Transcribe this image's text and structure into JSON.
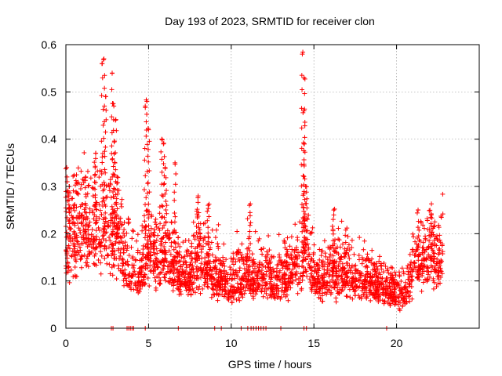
{
  "chart_data": {
    "type": "scatter",
    "title": "Day 193 of 2023, SRMTID for receiver clon",
    "xlabel": "GPS time / hours",
    "ylabel": "SRMTID / TECUs",
    "xlim": [
      0,
      25
    ],
    "ylim": [
      0,
      0.6
    ],
    "xticks": [
      0,
      5,
      10,
      15,
      20
    ],
    "xtick_labels": [
      "0",
      "5",
      "10",
      "15",
      "20"
    ],
    "yticks": [
      0,
      0.1,
      0.2,
      0.3,
      0.4,
      0.5,
      0.6
    ],
    "ytick_labels": [
      "0",
      "0.1",
      "0.2",
      "0.3",
      "0.4",
      "0.5",
      "0.6"
    ],
    "grid": true,
    "marker": "+",
    "color": "#ff0000",
    "series": [
      {
        "name": "SRMTID",
        "envelope": [
          {
            "x": 0.0,
            "y": 0.17
          },
          {
            "x": 0.3,
            "y": 0.2
          },
          {
            "x": 0.6,
            "y": 0.18
          },
          {
            "x": 1.0,
            "y": 0.2
          },
          {
            "x": 1.5,
            "y": 0.19
          },
          {
            "x": 2.0,
            "y": 0.21
          },
          {
            "x": 2.5,
            "y": 0.2
          },
          {
            "x": 3.0,
            "y": 0.2
          },
          {
            "x": 3.5,
            "y": 0.15
          },
          {
            "x": 4.0,
            "y": 0.12
          },
          {
            "x": 4.5,
            "y": 0.11
          },
          {
            "x": 5.0,
            "y": 0.17
          },
          {
            "x": 5.5,
            "y": 0.13
          },
          {
            "x": 6.0,
            "y": 0.15
          },
          {
            "x": 6.5,
            "y": 0.13
          },
          {
            "x": 7.0,
            "y": 0.11
          },
          {
            "x": 7.5,
            "y": 0.11
          },
          {
            "x": 8.0,
            "y": 0.15
          },
          {
            "x": 8.5,
            "y": 0.13
          },
          {
            "x": 9.0,
            "y": 0.11
          },
          {
            "x": 9.5,
            "y": 0.1
          },
          {
            "x": 10.0,
            "y": 0.09
          },
          {
            "x": 10.5,
            "y": 0.11
          },
          {
            "x": 11.0,
            "y": 0.12
          },
          {
            "x": 11.5,
            "y": 0.1
          },
          {
            "x": 12.0,
            "y": 0.11
          },
          {
            "x": 12.5,
            "y": 0.1
          },
          {
            "x": 13.0,
            "y": 0.1
          },
          {
            "x": 13.5,
            "y": 0.11
          },
          {
            "x": 14.0,
            "y": 0.13
          },
          {
            "x": 14.5,
            "y": 0.15
          },
          {
            "x": 15.0,
            "y": 0.11
          },
          {
            "x": 15.5,
            "y": 0.1
          },
          {
            "x": 16.0,
            "y": 0.12
          },
          {
            "x": 16.5,
            "y": 0.11
          },
          {
            "x": 17.0,
            "y": 0.12
          },
          {
            "x": 17.5,
            "y": 0.1
          },
          {
            "x": 18.0,
            "y": 0.1
          },
          {
            "x": 18.5,
            "y": 0.09
          },
          {
            "x": 19.0,
            "y": 0.09
          },
          {
            "x": 19.5,
            "y": 0.08
          },
          {
            "x": 20.0,
            "y": 0.07
          },
          {
            "x": 20.5,
            "y": 0.07
          },
          {
            "x": 21.0,
            "y": 0.12
          },
          {
            "x": 21.5,
            "y": 0.14
          },
          {
            "x": 22.0,
            "y": 0.15
          },
          {
            "x": 22.5,
            "y": 0.14
          },
          {
            "x": 22.8,
            "y": 0.15
          }
        ],
        "spikes": [
          {
            "x": 0.05,
            "y": 0.34
          },
          {
            "x": 0.2,
            "y": 0.3
          },
          {
            "x": 1.2,
            "y": 0.32
          },
          {
            "x": 1.8,
            "y": 0.37
          },
          {
            "x": 2.2,
            "y": 0.56
          },
          {
            "x": 2.3,
            "y": 0.57
          },
          {
            "x": 2.4,
            "y": 0.49
          },
          {
            "x": 2.8,
            "y": 0.54
          },
          {
            "x": 2.9,
            "y": 0.47
          },
          {
            "x": 3.0,
            "y": 0.44
          },
          {
            "x": 3.1,
            "y": 0.32
          },
          {
            "x": 4.8,
            "y": 0.47
          },
          {
            "x": 4.9,
            "y": 0.48
          },
          {
            "x": 5.0,
            "y": 0.42
          },
          {
            "x": 5.8,
            "y": 0.4
          },
          {
            "x": 5.9,
            "y": 0.39
          },
          {
            "x": 6.0,
            "y": 0.34
          },
          {
            "x": 6.6,
            "y": 0.35
          },
          {
            "x": 8.0,
            "y": 0.28
          },
          {
            "x": 8.6,
            "y": 0.26
          },
          {
            "x": 11.1,
            "y": 0.26
          },
          {
            "x": 14.3,
            "y": 0.58
          },
          {
            "x": 14.4,
            "y": 0.53
          },
          {
            "x": 14.4,
            "y": 0.46
          },
          {
            "x": 14.4,
            "y": 0.39
          },
          {
            "x": 14.5,
            "y": 0.3
          },
          {
            "x": 16.2,
            "y": 0.25
          },
          {
            "x": 21.3,
            "y": 0.25
          },
          {
            "x": 22.1,
            "y": 0.24
          }
        ],
        "zero_points_x": [
          2.75,
          2.85,
          3.7,
          3.8,
          3.9,
          4.0,
          4.1,
          4.8,
          6.8,
          9.0,
          9.4,
          10.6,
          11.0,
          11.2,
          11.35,
          11.5,
          11.65,
          11.8,
          11.95,
          12.1,
          13.0,
          14.4,
          14.55,
          19.4
        ]
      }
    ]
  }
}
